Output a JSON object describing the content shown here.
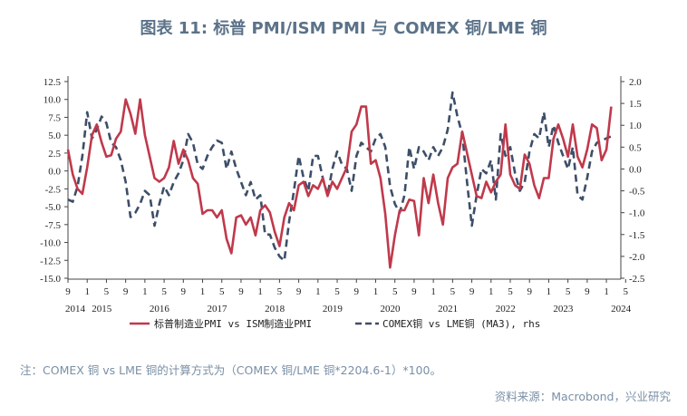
{
  "chart_data": {
    "type": "line",
    "title": "图表 11: 标普 PMI/ISM PMI 与 COMEX 铜/LME 铜",
    "x_start": "2014-09",
    "x_end": "2024-04",
    "x_tick_labels": [
      {
        "date": "2014-09",
        "label": "9"
      },
      {
        "date": "2015-01",
        "label": "1"
      },
      {
        "date": "2015-05",
        "label": "5"
      },
      {
        "date": "2015-09",
        "label": "9"
      },
      {
        "date": "2016-01",
        "label": "1"
      },
      {
        "date": "2016-05",
        "label": "5"
      },
      {
        "date": "2016-09",
        "label": "9"
      },
      {
        "date": "2017-01",
        "label": "1"
      },
      {
        "date": "2017-05",
        "label": "5"
      },
      {
        "date": "2017-09",
        "label": "9"
      },
      {
        "date": "2018-01",
        "label": "1"
      },
      {
        "date": "2018-05",
        "label": "5"
      },
      {
        "date": "2018-09",
        "label": "9"
      },
      {
        "date": "2019-01",
        "label": "1"
      },
      {
        "date": "2019-05",
        "label": "5"
      },
      {
        "date": "2019-09",
        "label": "9"
      },
      {
        "date": "2020-01",
        "label": "1"
      },
      {
        "date": "2020-05",
        "label": "5"
      },
      {
        "date": "2020-09",
        "label": "9"
      },
      {
        "date": "2021-01",
        "label": "1"
      },
      {
        "date": "2021-05",
        "label": "5"
      },
      {
        "date": "2021-09",
        "label": "9"
      },
      {
        "date": "2022-01",
        "label": "1"
      },
      {
        "date": "2022-05",
        "label": "5"
      },
      {
        "date": "2022-09",
        "label": "9"
      },
      {
        "date": "2023-01",
        "label": "1"
      },
      {
        "date": "2023-05",
        "label": "5"
      },
      {
        "date": "2023-09",
        "label": "9"
      },
      {
        "date": "2024-01",
        "label": "1"
      },
      {
        "date": "2024-05",
        "label": "5"
      }
    ],
    "x_year_labels": [
      {
        "date": "2014-09",
        "label": "2014"
      },
      {
        "date": "2015-01",
        "label": "2015"
      },
      {
        "date": "2016-01",
        "label": "2016"
      },
      {
        "date": "2017-01",
        "label": "2017"
      },
      {
        "date": "2018-01",
        "label": "2018"
      },
      {
        "date": "2019-01",
        "label": "2019"
      },
      {
        "date": "2020-01",
        "label": "2020"
      },
      {
        "date": "2021-01",
        "label": "2021"
      },
      {
        "date": "2022-01",
        "label": "2022"
      },
      {
        "date": "2023-01",
        "label": "2023"
      },
      {
        "date": "2024-01",
        "label": "2024"
      }
    ],
    "y_left": {
      "min": -15,
      "max": 12.5,
      "ticks": [
        12.5,
        10,
        7.5,
        5,
        2.5,
        0,
        -2.5,
        -5,
        -7.5,
        -10,
        -12.5,
        -15
      ],
      "tick_labels": [
        "12.5",
        "10.0",
        "7.5",
        "5.0",
        "2.5",
        "0.0",
        "-2.5",
        "-5.0",
        "-7.5",
        "-10.0",
        "-12.5",
        "-15.0"
      ]
    },
    "y_right": {
      "min": -2.5,
      "max": 2.0,
      "ticks": [
        2,
        1.5,
        1,
        0.5,
        0,
        -0.5,
        -1,
        -1.5,
        -2,
        -2.5
      ],
      "tick_labels": [
        "2.0",
        "1.5",
        "1.0",
        "0.5",
        "0.0",
        "-0.5",
        "-1.0",
        "-1.5",
        "-2.0",
        "-2.5"
      ]
    },
    "series": [
      {
        "name": "标普制造业PMI vs ISM制造业PMI",
        "axis": "left",
        "color": "#c0394b",
        "dash": "solid",
        "points": [
          [
            "2014-09",
            3.0
          ],
          [
            "2014-10",
            -0.5
          ],
          [
            "2014-11",
            -2.5
          ],
          [
            "2014-12",
            -3.2
          ],
          [
            "2015-01",
            0.5
          ],
          [
            "2015-02",
            5.0
          ],
          [
            "2015-03",
            6.5
          ],
          [
            "2015-04",
            4.0
          ],
          [
            "2015-05",
            2.0
          ],
          [
            "2015-06",
            2.2
          ],
          [
            "2015-07",
            4.5
          ],
          [
            "2015-08",
            5.5
          ],
          [
            "2015-09",
            10.0
          ],
          [
            "2015-10",
            8.0
          ],
          [
            "2015-11",
            5.2
          ],
          [
            "2015-12",
            10.0
          ],
          [
            "2016-01",
            5.0
          ],
          [
            "2016-02",
            2.0
          ],
          [
            "2016-03",
            -1.0
          ],
          [
            "2016-04",
            -1.5
          ],
          [
            "2016-05",
            -1.0
          ],
          [
            "2016-06",
            0.5
          ],
          [
            "2016-07",
            4.2
          ],
          [
            "2016-08",
            1.0
          ],
          [
            "2016-09",
            3.0
          ],
          [
            "2016-10",
            1.5
          ],
          [
            "2016-11",
            -1.0
          ],
          [
            "2016-12",
            -1.8
          ],
          [
            "2017-01",
            -6.0
          ],
          [
            "2017-02",
            -5.5
          ],
          [
            "2017-03",
            -5.5
          ],
          [
            "2017-04",
            -6.5
          ],
          [
            "2017-05",
            -5.5
          ],
          [
            "2017-06",
            -9.5
          ],
          [
            "2017-07",
            -11.5
          ],
          [
            "2017-08",
            -6.5
          ],
          [
            "2017-09",
            -6.2
          ],
          [
            "2017-10",
            -7.5
          ],
          [
            "2017-11",
            -6.5
          ],
          [
            "2017-12",
            -9.0
          ],
          [
            "2018-01",
            -5.5
          ],
          [
            "2018-02",
            -4.8
          ],
          [
            "2018-03",
            -5.8
          ],
          [
            "2018-04",
            -8.5
          ],
          [
            "2018-05",
            -10.5
          ],
          [
            "2018-06",
            -6.5
          ],
          [
            "2018-07",
            -4.5
          ],
          [
            "2018-08",
            -5.5
          ],
          [
            "2018-09",
            -2.0
          ],
          [
            "2018-10",
            -1.5
          ],
          [
            "2018-11",
            -3.5
          ],
          [
            "2018-12",
            -2.0
          ],
          [
            "2019-01",
            -2.5
          ],
          [
            "2019-02",
            -1.0
          ],
          [
            "2019-03",
            -3.5
          ],
          [
            "2019-04",
            -1.5
          ],
          [
            "2019-05",
            -2.5
          ],
          [
            "2019-06",
            -1.0
          ],
          [
            "2019-07",
            0.5
          ],
          [
            "2019-08",
            5.5
          ],
          [
            "2019-09",
            6.5
          ],
          [
            "2019-10",
            9.0
          ],
          [
            "2019-11",
            9.0
          ],
          [
            "2019-12",
            1.0
          ],
          [
            "2020-01",
            1.5
          ],
          [
            "2020-02",
            -1.0
          ],
          [
            "2020-03",
            -6.0
          ],
          [
            "2020-04",
            -13.5
          ],
          [
            "2020-05",
            -9.0
          ],
          [
            "2020-06",
            -5.5
          ],
          [
            "2020-07",
            -5.5
          ],
          [
            "2020-08",
            -4.0
          ],
          [
            "2020-09",
            -4.2
          ],
          [
            "2020-10",
            -9.0
          ],
          [
            "2020-11",
            -1.0
          ],
          [
            "2020-12",
            -4.5
          ],
          [
            "2021-01",
            -0.5
          ],
          [
            "2021-02",
            -4.5
          ],
          [
            "2021-03",
            -7.5
          ],
          [
            "2021-04",
            -1.0
          ],
          [
            "2021-05",
            0.5
          ],
          [
            "2021-06",
            1.0
          ],
          [
            "2021-07",
            5.5
          ],
          [
            "2021-08",
            2.5
          ],
          [
            "2021-09",
            -0.5
          ],
          [
            "2021-10",
            -3.5
          ],
          [
            "2021-11",
            -3.8
          ],
          [
            "2021-12",
            -1.5
          ],
          [
            "2022-01",
            -3.0
          ],
          [
            "2022-02",
            -1.5
          ],
          [
            "2022-03",
            -0.5
          ],
          [
            "2022-04",
            6.5
          ],
          [
            "2022-05",
            -0.5
          ],
          [
            "2022-06",
            -2.0
          ],
          [
            "2022-07",
            -2.5
          ],
          [
            "2022-08",
            2.3
          ],
          [
            "2022-09",
            1.0
          ],
          [
            "2022-10",
            -2.0
          ],
          [
            "2022-11",
            -3.8
          ],
          [
            "2022-12",
            -1.0
          ],
          [
            "2023-01",
            -1.0
          ],
          [
            "2023-02",
            4.5
          ],
          [
            "2023-03",
            6.5
          ],
          [
            "2023-04",
            4.5
          ],
          [
            "2023-05",
            2.0
          ],
          [
            "2023-06",
            6.5
          ],
          [
            "2023-07",
            2.0
          ],
          [
            "2023-08",
            0.5
          ],
          [
            "2023-09",
            3.0
          ],
          [
            "2023-10",
            6.5
          ],
          [
            "2023-11",
            6.0
          ],
          [
            "2023-12",
            1.5
          ],
          [
            "2024-01",
            3.0
          ],
          [
            "2024-02",
            9.0
          ]
        ]
      },
      {
        "name": "COMEX铜 vs LME铜 (MA3), rhs",
        "axis": "right",
        "color": "#3d4e68",
        "dash": "dashed",
        "points": [
          [
            "2014-09",
            -0.7
          ],
          [
            "2014-10",
            -0.75
          ],
          [
            "2014-11",
            -0.4
          ],
          [
            "2014-12",
            0.3
          ],
          [
            "2015-01",
            1.3
          ],
          [
            "2015-02",
            0.7
          ],
          [
            "2015-03",
            0.9
          ],
          [
            "2015-04",
            1.2
          ],
          [
            "2015-05",
            1.05
          ],
          [
            "2015-06",
            0.6
          ],
          [
            "2015-07",
            0.5
          ],
          [
            "2015-08",
            0.2
          ],
          [
            "2015-09",
            -0.3
          ],
          [
            "2015-10",
            -1.1
          ],
          [
            "2015-11",
            -1.0
          ],
          [
            "2015-12",
            -0.8
          ],
          [
            "2016-01",
            -0.5
          ],
          [
            "2016-02",
            -0.6
          ],
          [
            "2016-03",
            -1.3
          ],
          [
            "2016-04",
            -0.8
          ],
          [
            "2016-05",
            -0.4
          ],
          [
            "2016-06",
            -0.6
          ],
          [
            "2016-07",
            -0.3
          ],
          [
            "2016-08",
            -0.1
          ],
          [
            "2016-09",
            0.2
          ],
          [
            "2016-10",
            0.8
          ],
          [
            "2016-11",
            0.6
          ],
          [
            "2016-12",
            0.1
          ],
          [
            "2017-01",
            0.0
          ],
          [
            "2017-02",
            0.3
          ],
          [
            "2017-03",
            0.5
          ],
          [
            "2017-04",
            0.65
          ],
          [
            "2017-05",
            0.6
          ],
          [
            "2017-06",
            0.0
          ],
          [
            "2017-07",
            0.4
          ],
          [
            "2017-08",
            0.0
          ],
          [
            "2017-09",
            -0.3
          ],
          [
            "2017-10",
            -0.6
          ],
          [
            "2017-11",
            -0.3
          ],
          [
            "2017-12",
            -0.7
          ],
          [
            "2018-01",
            -0.6
          ],
          [
            "2018-02",
            -1.5
          ],
          [
            "2018-03",
            -1.5
          ],
          [
            "2018-04",
            -1.8
          ],
          [
            "2018-05",
            -2.0
          ],
          [
            "2018-06",
            -2.1
          ],
          [
            "2018-07",
            -1.2
          ],
          [
            "2018-08",
            -0.5
          ],
          [
            "2018-09",
            0.3
          ],
          [
            "2018-10",
            -0.2
          ],
          [
            "2018-11",
            -0.5
          ],
          [
            "2018-12",
            0.3
          ],
          [
            "2019-01",
            0.3
          ],
          [
            "2019-02",
            -0.2
          ],
          [
            "2019-03",
            -0.6
          ],
          [
            "2019-04",
            0.0
          ],
          [
            "2019-05",
            0.4
          ],
          [
            "2019-06",
            0.1
          ],
          [
            "2019-07",
            0.0
          ],
          [
            "2019-08",
            -0.5
          ],
          [
            "2019-09",
            0.3
          ],
          [
            "2019-10",
            0.6
          ],
          [
            "2019-11",
            0.5
          ],
          [
            "2019-12",
            0.4
          ],
          [
            "2020-01",
            0.7
          ],
          [
            "2020-02",
            0.8
          ],
          [
            "2020-03",
            0.5
          ],
          [
            "2020-04",
            -0.4
          ],
          [
            "2020-05",
            -0.8
          ],
          [
            "2020-06",
            -1.0
          ],
          [
            "2020-07",
            -0.6
          ],
          [
            "2020-08",
            0.5
          ],
          [
            "2020-09",
            0.0
          ],
          [
            "2020-10",
            0.5
          ],
          [
            "2020-11",
            0.4
          ],
          [
            "2020-12",
            0.2
          ],
          [
            "2021-01",
            0.5
          ],
          [
            "2021-02",
            0.3
          ],
          [
            "2021-03",
            0.5
          ],
          [
            "2021-04",
            0.9
          ],
          [
            "2021-05",
            1.75
          ],
          [
            "2021-06",
            1.2
          ],
          [
            "2021-07",
            0.8
          ],
          [
            "2021-08",
            -0.3
          ],
          [
            "2021-09",
            -1.3
          ],
          [
            "2021-10",
            -0.6
          ],
          [
            "2021-11",
            0.0
          ],
          [
            "2021-12",
            -0.1
          ],
          [
            "2022-01",
            0.2
          ],
          [
            "2022-02",
            -0.7
          ],
          [
            "2022-03",
            0.8
          ],
          [
            "2022-04",
            0.3
          ],
          [
            "2022-05",
            0.5
          ],
          [
            "2022-06",
            -0.1
          ],
          [
            "2022-07",
            -0.5
          ],
          [
            "2022-08",
            -0.3
          ],
          [
            "2022-09",
            0.4
          ],
          [
            "2022-10",
            0.8
          ],
          [
            "2022-11",
            0.7
          ],
          [
            "2022-12",
            1.3
          ],
          [
            "2023-01",
            0.5
          ],
          [
            "2023-02",
            1.0
          ],
          [
            "2023-03",
            0.6
          ],
          [
            "2023-04",
            0.3
          ],
          [
            "2023-05",
            0.0
          ],
          [
            "2023-06",
            0.5
          ],
          [
            "2023-07",
            -0.6
          ],
          [
            "2023-08",
            -0.7
          ],
          [
            "2023-09",
            -0.2
          ],
          [
            "2023-10",
            0.4
          ],
          [
            "2023-11",
            0.6
          ],
          [
            "2023-12",
            0.65
          ],
          [
            "2024-01",
            0.7
          ],
          [
            "2024-02",
            0.75
          ]
        ]
      }
    ],
    "legend": {
      "placement": "bottom-center",
      "left_label": "标普制造业PMI vs ISM制造业PMI",
      "right_label": "COMEX铜 vs LME铜 (MA3), rhs"
    },
    "grid": false
  },
  "footnote": "注：COMEX 铜 vs LME 铜的计算方式为（COMEX 铜/LME 铜*2204.6-1）*100。",
  "source": "资料来源：Macrobond，兴业研究"
}
